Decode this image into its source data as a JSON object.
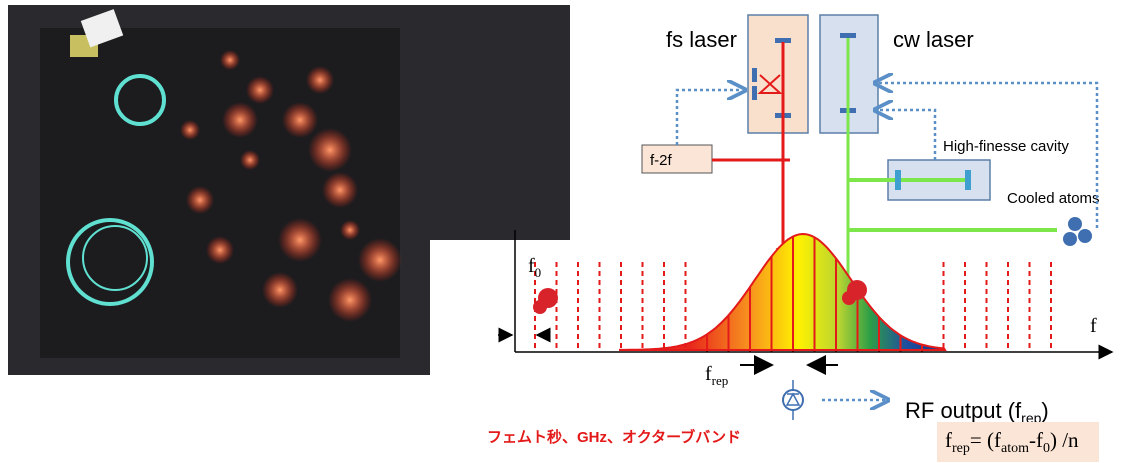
{
  "labels": {
    "fs_laser": "fs laser",
    "cw_laser": "cw laser",
    "f2f": "f-2f",
    "cavity": "High-finesse cavity",
    "atoms": "Cooled atoms",
    "f0": {
      "base": "f",
      "sub": "0"
    },
    "f_axis": "f",
    "frep": {
      "base": "f",
      "sub": "rep"
    },
    "rf_output": {
      "text": "RF output (f",
      "sub": "rep",
      "close": ")"
    },
    "japanese": "フェムト秒、GHz、オクターブバンド",
    "formula": [
      {
        "text": "f"
      },
      {
        "sub": "rep"
      },
      {
        "text": "= (f"
      },
      {
        "sub": "atom"
      },
      {
        "text": "-f"
      },
      {
        "sub": "0"
      },
      {
        "text": ") /n"
      }
    ]
  }
}
